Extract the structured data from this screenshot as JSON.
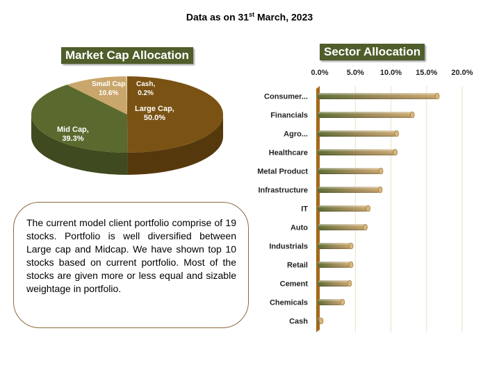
{
  "header": {
    "prefix": "Data as on 31",
    "sup": "st",
    "suffix": " March, 2023"
  },
  "market_cap": {
    "title": "Market Cap Allocation",
    "slices": [
      {
        "name": "Large Cap",
        "pct_label": "50.0%",
        "value": 50.0,
        "color": "#7a5213"
      },
      {
        "name": "Mid Cap",
        "pct_label": "39.3%",
        "value": 39.3,
        "color": "#5a6a2e"
      },
      {
        "name": "Small Cap",
        "pct_label": "10.6%",
        "value": 10.6,
        "color": "#c9a66b"
      },
      {
        "name": "Cash",
        "pct_label": "0.2%",
        "value": 0.2,
        "color": "#e4d3a6"
      }
    ]
  },
  "sector": {
    "title": "Sector Allocation"
  },
  "note": {
    "text": "The current model client portfolio comprise of 19 stocks. Portfolio is well diversified between Large cap and Midcap. We have shown top 10 stocks based on current portfolio. Most of the stocks are given more or less equal  and sizable weightage  in portfolio."
  },
  "chart_data": [
    {
      "type": "pie",
      "title": "Market Cap Allocation",
      "categories": [
        "Large Cap",
        "Mid Cap",
        "Small Cap",
        "Cash"
      ],
      "values": [
        50.0,
        39.3,
        10.6,
        0.2
      ]
    },
    {
      "type": "bar",
      "orientation": "horizontal",
      "title": "Sector Allocation",
      "categories": [
        "Consumer...",
        "Financials",
        "Agro...",
        "Healthcare",
        "Metal Product",
        "Infrastructure",
        "IT",
        "Auto",
        "Industrials",
        "Retail",
        "Cement",
        "Chemicals",
        "Cash"
      ],
      "values": [
        16.5,
        13.0,
        10.8,
        10.6,
        8.6,
        8.5,
        6.8,
        6.4,
        4.4,
        4.4,
        4.2,
        3.2,
        0.2
      ],
      "xlim": [
        0,
        20
      ],
      "x_ticks": [
        "0.0%",
        "5.0%",
        "10.0%",
        "15.0%",
        "20.0%"
      ],
      "axis_position": "top",
      "grid": true
    }
  ]
}
